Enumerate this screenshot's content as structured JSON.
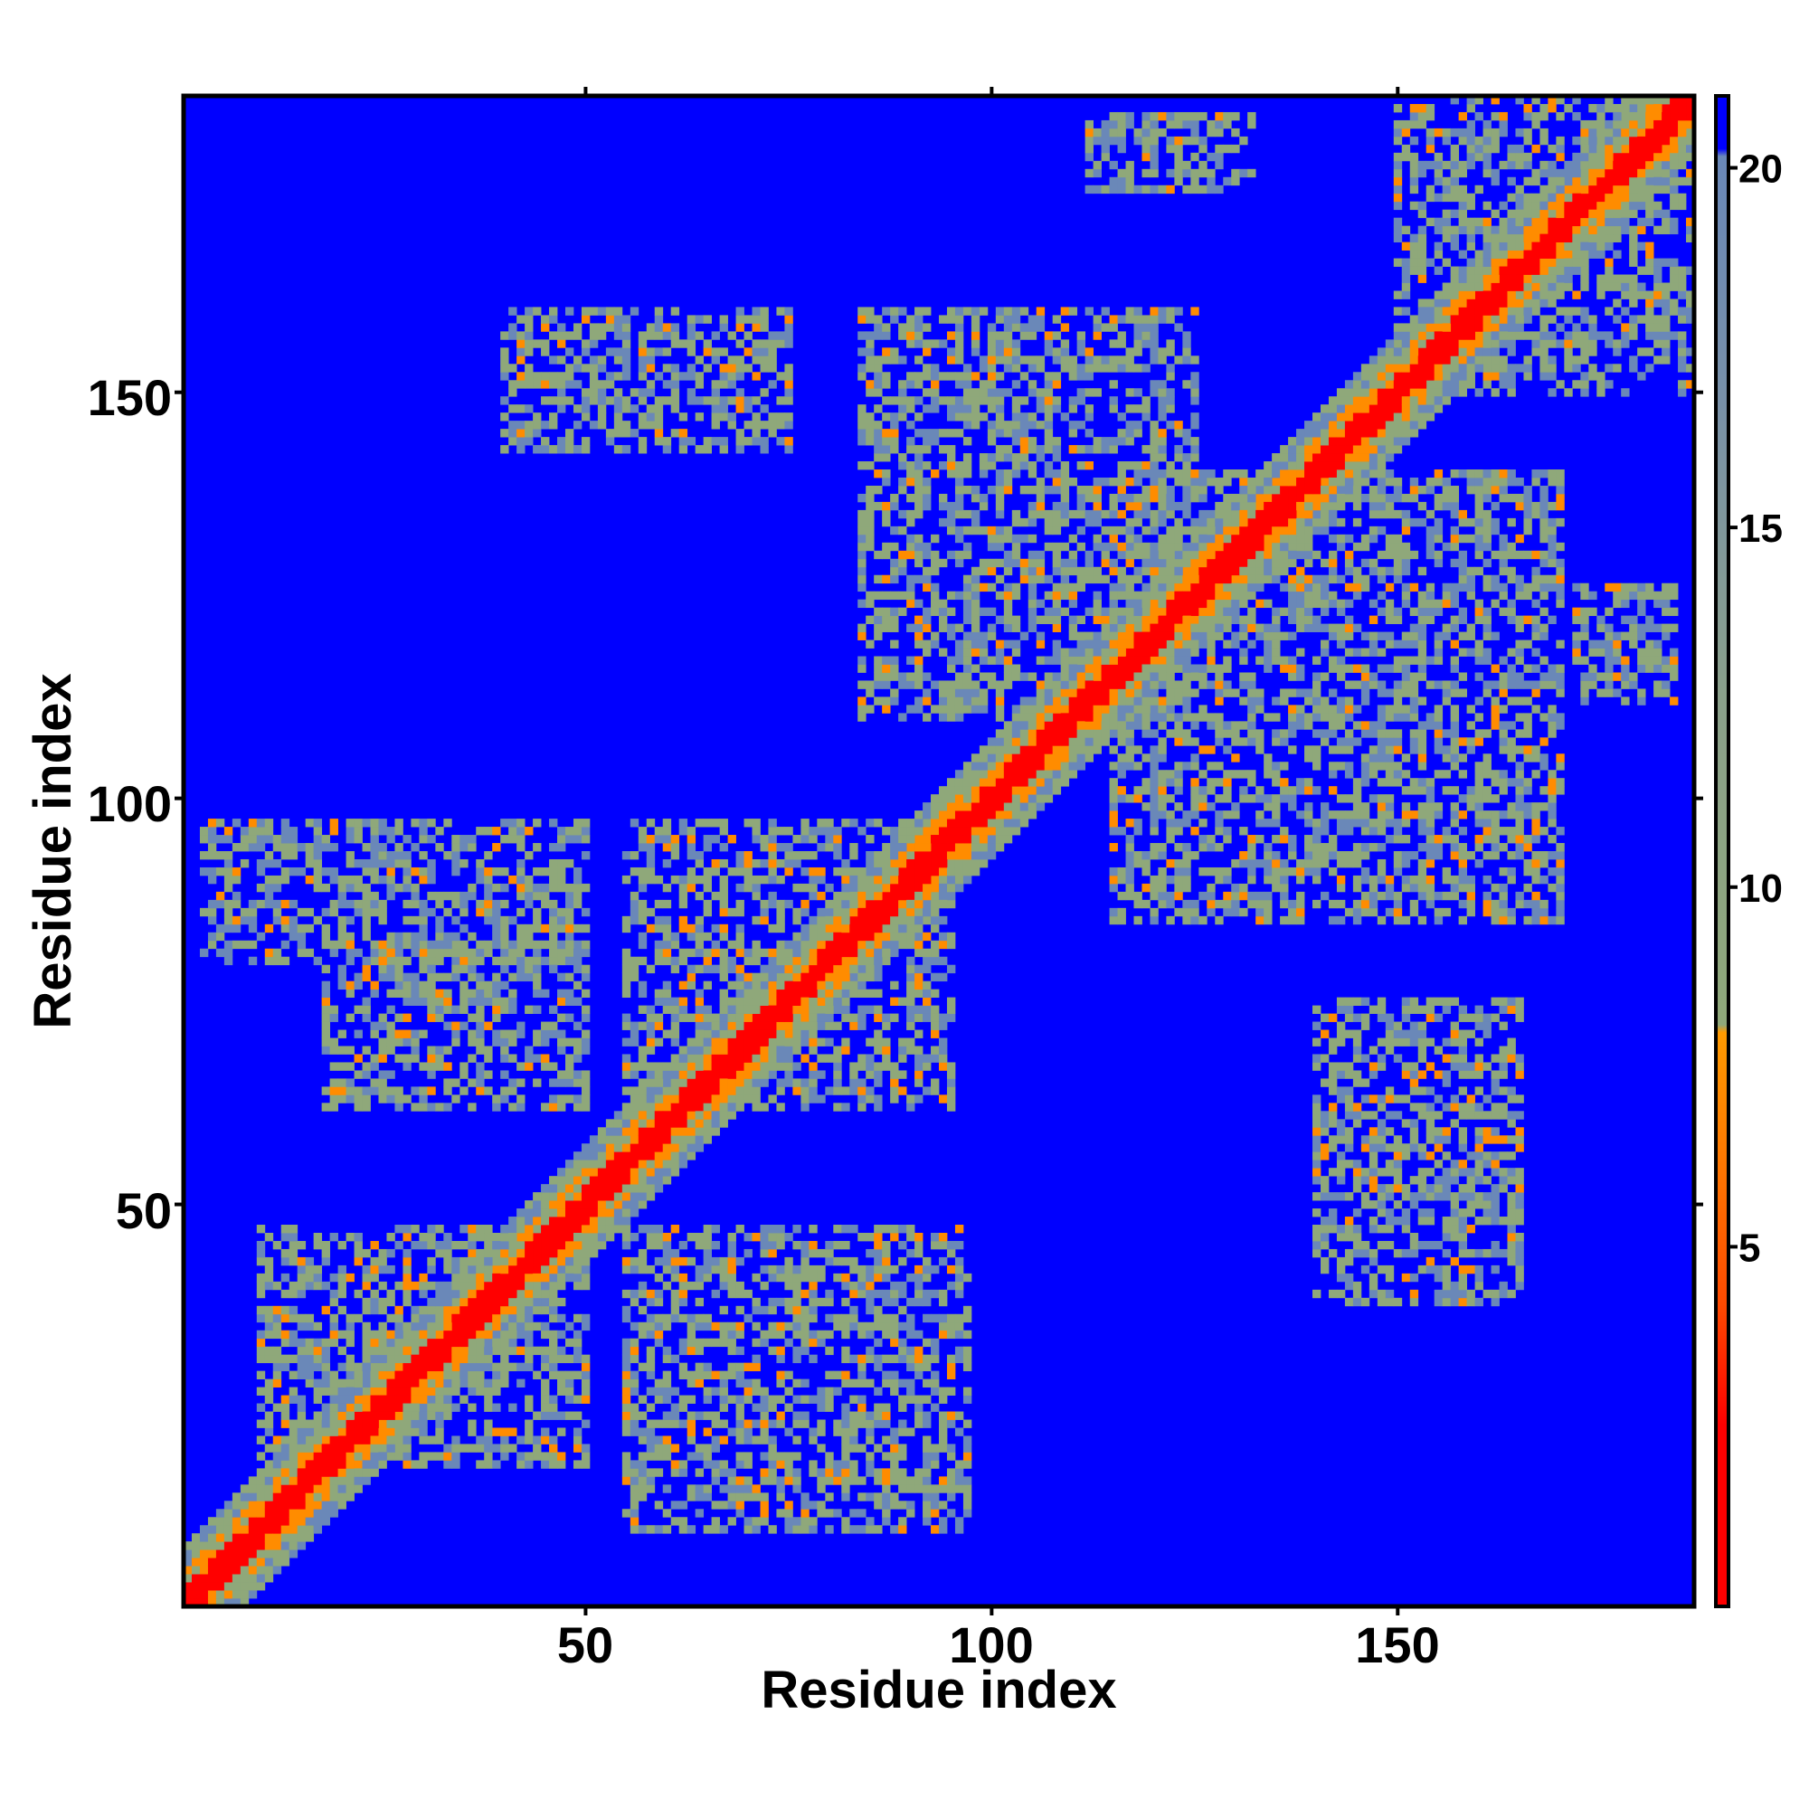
{
  "chart_data": {
    "type": "heatmap",
    "title": "",
    "xlabel": "Residue index",
    "ylabel": "Residue index",
    "xlim": [
      0.5,
      186.5
    ],
    "ylim": [
      0.5,
      186.5
    ],
    "xticks": [
      50,
      100,
      150
    ],
    "yticks": [
      50,
      100,
      150
    ],
    "xtick_labels": [
      "50",
      "100",
      "150"
    ],
    "ytick_labels": [
      "50",
      "100",
      "150"
    ],
    "colorbar": {
      "range": [
        0,
        21
      ],
      "ticks": [
        5,
        10,
        15,
        20
      ],
      "tick_labels": [
        "5",
        "10",
        "15",
        "20"
      ],
      "colors": {
        "near": "#ff0000",
        "mid_low": "#ff8c00",
        "mid": "#8fa87a",
        "far": "#6a88b8",
        "background": "#0000ff"
      }
    },
    "description_of_values": "Symmetric residue-residue distance map; low values (red) along the diagonal, contact clusters (orange/grey-green) off-diagonal, background at maximum (blue).",
    "diagonal_band_width": 4,
    "clusters": [
      {
        "x_range": [
          3,
          50
        ],
        "y_range": [
          80,
          97
        ]
      },
      {
        "x_range": [
          18,
          50
        ],
        "y_range": [
          62,
          82
        ]
      },
      {
        "x_range": [
          55,
          95
        ],
        "y_range": [
          62,
          97
        ]
      },
      {
        "x_range": [
          10,
          50
        ],
        "y_range": [
          18,
          47
        ]
      },
      {
        "x_range": [
          55,
          97
        ],
        "y_range": [
          10,
          47
        ]
      },
      {
        "x_range": [
          84,
          125
        ],
        "y_range": [
          110,
          160
        ]
      },
      {
        "x_range": [
          115,
          170
        ],
        "y_range": [
          85,
          140
        ]
      },
      {
        "x_range": [
          140,
          165
        ],
        "y_range": [
          38,
          75
        ]
      },
      {
        "x_range": [
          150,
          186
        ],
        "y_range": [
          150,
          186
        ]
      },
      {
        "x_range": [
          40,
          75
        ],
        "y_range": [
          143,
          160
        ]
      },
      {
        "x_range": [
          112,
          132
        ],
        "y_range": [
          175,
          184
        ]
      },
      {
        "x_range": [
          172,
          184
        ],
        "y_range": [
          112,
          126
        ]
      }
    ]
  }
}
